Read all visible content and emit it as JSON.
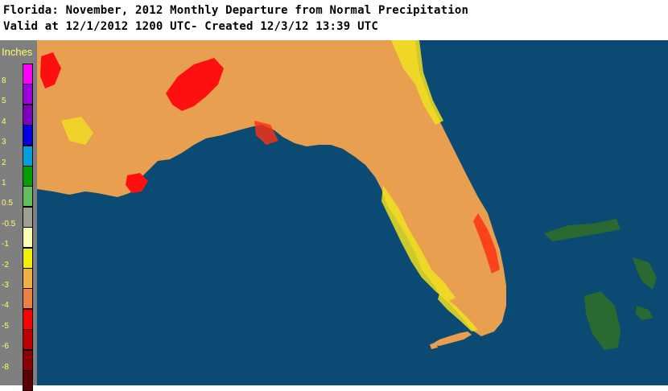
{
  "header": {
    "title": "Florida: November, 2012 Monthly Departure from Normal Precipitation",
    "subtitle": "Valid at 12/1/2012 1200 UTC- Created 12/3/12 13:39 UTC"
  },
  "legend": {
    "unit": "Inches",
    "items": [
      {
        "label": "8",
        "color": "#ff00ff"
      },
      {
        "label": "5",
        "color": "#a000e0"
      },
      {
        "label": "4",
        "color": "#8000c0"
      },
      {
        "label": "3",
        "color": "#0000e0"
      },
      {
        "label": "2",
        "color": "#00a0e0"
      },
      {
        "label": "1",
        "color": "#00a000"
      },
      {
        "label": "0.5",
        "color": "#60c060"
      },
      {
        "label": "-0.5",
        "color": "#a0a090"
      },
      {
        "label": "-1",
        "color": "#ffffb0"
      },
      {
        "label": "-2",
        "color": "#f0f000"
      },
      {
        "label": "-3",
        "color": "#f0b040"
      },
      {
        "label": "-4",
        "color": "#f08040"
      },
      {
        "label": "-5",
        "color": "#ff0000"
      },
      {
        "label": "-6",
        "color": "#c00000"
      },
      {
        "label": "-8",
        "color": "#900000"
      },
      {
        "label": "",
        "color": "#600000"
      }
    ]
  },
  "map": {
    "water_color": "#0a4a73",
    "land_color": "#e8a050",
    "islands_color": "#2a6a30"
  }
}
